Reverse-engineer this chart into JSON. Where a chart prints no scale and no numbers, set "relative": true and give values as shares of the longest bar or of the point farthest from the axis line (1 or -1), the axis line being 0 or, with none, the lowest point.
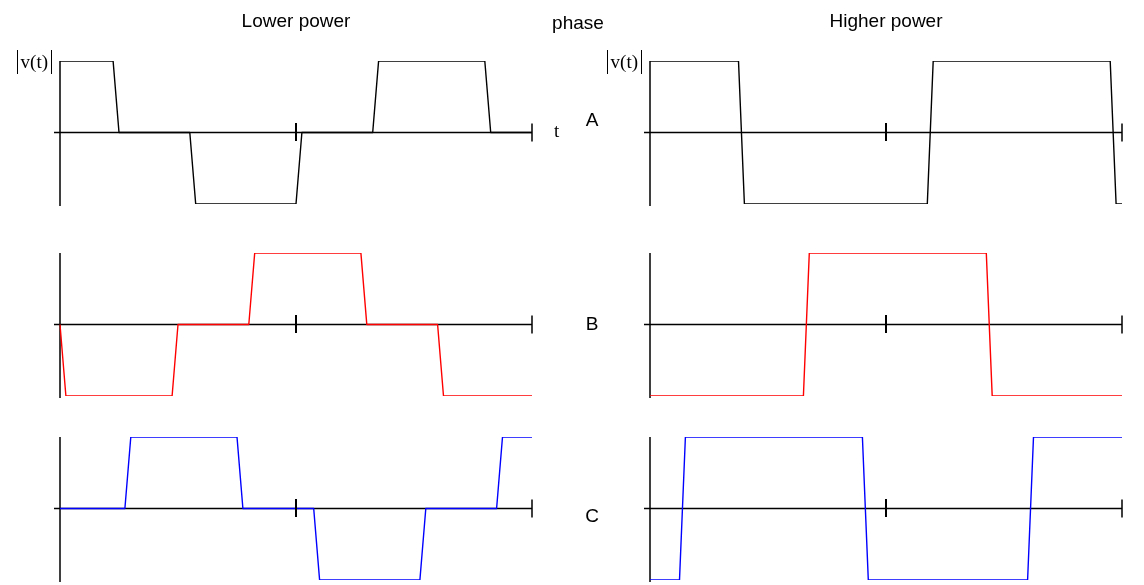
{
  "chart_data": [
    {
      "type": "line",
      "relative": true,
      "title": "Lower power",
      "ylabel": "v(t)",
      "xlabel": "t",
      "categories": [
        null,
        null,
        null,
        null,
        null,
        null,
        null,
        null,
        null,
        null,
        null,
        null,
        null,
        null,
        null,
        null,
        null,
        null,
        null,
        null,
        null,
        null,
        null,
        null,
        null,
        null,
        null,
        null,
        null,
        null,
        null,
        null,
        null,
        null,
        null,
        null,
        null,
        null,
        null,
        null,
        null,
        null,
        null,
        null,
        null,
        null,
        null,
        null,
        null,
        null,
        null,
        null,
        null,
        null,
        null,
        null,
        null,
        null,
        null,
        null,
        null,
        null,
        null,
        null,
        null,
        null,
        null,
        null,
        null,
        null,
        null,
        null,
        null,
        null,
        null,
        null,
        null,
        null,
        null,
        null,
        null
      ],
      "series": [
        {
          "color": "#000000",
          "values": [
            1,
            1,
            1,
            1,
            1,
            1,
            1,
            1,
            1,
            1,
            0,
            0,
            0,
            0,
            0,
            0,
            0,
            0,
            0,
            0,
            0,
            0,
            0,
            -1,
            -1,
            -1,
            -1,
            -1,
            -1,
            -1,
            -1,
            -1,
            -1,
            -1,
            -1,
            -1,
            -1,
            -1,
            -1,
            -1,
            -1,
            0,
            0,
            0,
            0,
            0,
            0,
            0,
            0,
            0,
            0,
            0,
            0,
            0,
            1,
            1,
            1,
            1,
            1,
            1,
            1,
            1,
            1,
            1,
            1,
            1,
            1,
            1,
            1,
            1,
            1,
            1,
            1,
            0,
            0,
            0,
            0,
            0,
            0,
            0,
            0
          ]
        }
      ]
    },
    {
      "type": "line",
      "relative": true,
      "categories": [
        null,
        null,
        null,
        null,
        null,
        null,
        null,
        null,
        null,
        null,
        null,
        null,
        null,
        null,
        null,
        null,
        null,
        null,
        null,
        null,
        null,
        null,
        null,
        null,
        null,
        null,
        null,
        null,
        null,
        null,
        null,
        null,
        null,
        null,
        null,
        null,
        null,
        null,
        null,
        null,
        null,
        null,
        null,
        null,
        null,
        null,
        null,
        null,
        null,
        null,
        null,
        null,
        null,
        null,
        null,
        null,
        null,
        null,
        null,
        null,
        null,
        null,
        null,
        null,
        null,
        null,
        null,
        null,
        null,
        null,
        null,
        null,
        null,
        null,
        null,
        null,
        null,
        null,
        null,
        null,
        null
      ],
      "series": [
        {
          "color": "#ff0000",
          "values": [
            0,
            -1,
            -1,
            -1,
            -1,
            -1,
            -1,
            -1,
            -1,
            -1,
            -1,
            -1,
            -1,
            -1,
            -1,
            -1,
            -1,
            -1,
            -1,
            -1,
            0,
            0,
            0,
            0,
            0,
            0,
            0,
            0,
            0,
            0,
            0,
            0,
            0,
            1,
            1,
            1,
            1,
            1,
            1,
            1,
            1,
            1,
            1,
            1,
            1,
            1,
            1,
            1,
            1,
            1,
            1,
            1,
            0,
            0,
            0,
            0,
            0,
            0,
            0,
            0,
            0,
            0,
            0,
            0,
            0,
            -1,
            -1,
            -1,
            -1,
            -1,
            -1,
            -1,
            -1,
            -1,
            -1,
            -1,
            -1,
            -1,
            -1,
            -1,
            -1
          ]
        }
      ]
    },
    {
      "type": "line",
      "relative": true,
      "categories": [
        null,
        null,
        null,
        null,
        null,
        null,
        null,
        null,
        null,
        null,
        null,
        null,
        null,
        null,
        null,
        null,
        null,
        null,
        null,
        null,
        null,
        null,
        null,
        null,
        null,
        null,
        null,
        null,
        null,
        null,
        null,
        null,
        null,
        null,
        null,
        null,
        null,
        null,
        null,
        null,
        null,
        null,
        null,
        null,
        null,
        null,
        null,
        null,
        null,
        null,
        null,
        null,
        null,
        null,
        null,
        null,
        null,
        null,
        null,
        null,
        null,
        null,
        null,
        null,
        null,
        null,
        null,
        null,
        null,
        null,
        null,
        null,
        null,
        null,
        null,
        null,
        null,
        null,
        null,
        null,
        null
      ],
      "series": [
        {
          "color": "#0000ff",
          "values": [
            0,
            0,
            0,
            0,
            0,
            0,
            0,
            0,
            0,
            0,
            0,
            0,
            1,
            1,
            1,
            1,
            1,
            1,
            1,
            1,
            1,
            1,
            1,
            1,
            1,
            1,
            1,
            1,
            1,
            1,
            1,
            0,
            0,
            0,
            0,
            0,
            0,
            0,
            0,
            0,
            0,
            0,
            0,
            0,
            -1,
            -1,
            -1,
            -1,
            -1,
            -1,
            -1,
            -1,
            -1,
            -1,
            -1,
            -1,
            -1,
            -1,
            -1,
            -1,
            -1,
            -1,
            0,
            0,
            0,
            0,
            0,
            0,
            0,
            0,
            0,
            0,
            0,
            0,
            0,
            1,
            1,
            1,
            1,
            1,
            1
          ]
        }
      ]
    },
    {
      "type": "other",
      "title": "phase",
      "annotations": [
        "A",
        "B",
        "C"
      ]
    },
    {
      "type": "line",
      "relative": true,
      "title": "Higher power",
      "ylabel": "v(t)",
      "categories": [
        null,
        null,
        null,
        null,
        null,
        null,
        null,
        null,
        null,
        null,
        null,
        null,
        null,
        null,
        null,
        null,
        null,
        null,
        null,
        null,
        null,
        null,
        null,
        null,
        null,
        null,
        null,
        null,
        null,
        null,
        null,
        null,
        null,
        null,
        null,
        null,
        null,
        null,
        null,
        null,
        null,
        null,
        null,
        null,
        null,
        null,
        null,
        null,
        null,
        null,
        null,
        null,
        null,
        null,
        null,
        null,
        null,
        null,
        null,
        null,
        null,
        null,
        null,
        null,
        null,
        null,
        null,
        null,
        null,
        null,
        null,
        null,
        null,
        null,
        null,
        null,
        null,
        null,
        null,
        null,
        null
      ],
      "series": [
        {
          "color": "#000000",
          "values": [
            1,
            1,
            1,
            1,
            1,
            1,
            1,
            1,
            1,
            1,
            1,
            1,
            1,
            1,
            1,
            1,
            -1,
            -1,
            -1,
            -1,
            -1,
            -1,
            -1,
            -1,
            -1,
            -1,
            -1,
            -1,
            -1,
            -1,
            -1,
            -1,
            -1,
            -1,
            -1,
            -1,
            -1,
            -1,
            -1,
            -1,
            -1,
            -1,
            -1,
            -1,
            -1,
            -1,
            -1,
            -1,
            1,
            1,
            1,
            1,
            1,
            1,
            1,
            1,
            1,
            1,
            1,
            1,
            1,
            1,
            1,
            1,
            1,
            1,
            1,
            1,
            1,
            1,
            1,
            1,
            1,
            1,
            1,
            1,
            1,
            1,
            1,
            -1,
            -1
          ]
        }
      ]
    },
    {
      "type": "line",
      "relative": true,
      "categories": [
        null,
        null,
        null,
        null,
        null,
        null,
        null,
        null,
        null,
        null,
        null,
        null,
        null,
        null,
        null,
        null,
        null,
        null,
        null,
        null,
        null,
        null,
        null,
        null,
        null,
        null,
        null,
        null,
        null,
        null,
        null,
        null,
        null,
        null,
        null,
        null,
        null,
        null,
        null,
        null,
        null,
        null,
        null,
        null,
        null,
        null,
        null,
        null,
        null,
        null,
        null,
        null,
        null,
        null,
        null,
        null,
        null,
        null,
        null,
        null,
        null,
        null,
        null,
        null,
        null,
        null,
        null,
        null,
        null,
        null,
        null,
        null,
        null,
        null,
        null,
        null,
        null,
        null,
        null,
        null,
        null
      ],
      "series": [
        {
          "color": "#ff0000",
          "values": [
            -1,
            -1,
            -1,
            -1,
            -1,
            -1,
            -1,
            -1,
            -1,
            -1,
            -1,
            -1,
            -1,
            -1,
            -1,
            -1,
            -1,
            -1,
            -1,
            -1,
            -1,
            -1,
            -1,
            -1,
            -1,
            -1,
            -1,
            1,
            1,
            1,
            1,
            1,
            1,
            1,
            1,
            1,
            1,
            1,
            1,
            1,
            1,
            1,
            1,
            1,
            1,
            1,
            1,
            1,
            1,
            1,
            1,
            1,
            1,
            1,
            1,
            1,
            1,
            1,
            -1,
            -1,
            -1,
            -1,
            -1,
            -1,
            -1,
            -1,
            -1,
            -1,
            -1,
            -1,
            -1,
            -1,
            -1,
            -1,
            -1,
            -1,
            -1,
            -1,
            -1,
            -1,
            -1
          ]
        }
      ]
    },
    {
      "type": "line",
      "relative": true,
      "categories": [
        null,
        null,
        null,
        null,
        null,
        null,
        null,
        null,
        null,
        null,
        null,
        null,
        null,
        null,
        null,
        null,
        null,
        null,
        null,
        null,
        null,
        null,
        null,
        null,
        null,
        null,
        null,
        null,
        null,
        null,
        null,
        null,
        null,
        null,
        null,
        null,
        null,
        null,
        null,
        null,
        null,
        null,
        null,
        null,
        null,
        null,
        null,
        null,
        null,
        null,
        null,
        null,
        null,
        null,
        null,
        null,
        null,
        null,
        null,
        null,
        null,
        null,
        null,
        null,
        null,
        null,
        null,
        null,
        null,
        null,
        null,
        null,
        null,
        null,
        null,
        null,
        null,
        null,
        null,
        null,
        null
      ],
      "series": [
        {
          "color": "#0000ff",
          "values": [
            -1,
            -1,
            -1,
            -1,
            -1,
            -1,
            1,
            1,
            1,
            1,
            1,
            1,
            1,
            1,
            1,
            1,
            1,
            1,
            1,
            1,
            1,
            1,
            1,
            1,
            1,
            1,
            1,
            1,
            1,
            1,
            1,
            1,
            1,
            1,
            1,
            1,
            1,
            -1,
            -1,
            -1,
            -1,
            -1,
            -1,
            -1,
            -1,
            -1,
            -1,
            -1,
            -1,
            -1,
            -1,
            -1,
            -1,
            -1,
            -1,
            -1,
            -1,
            -1,
            -1,
            -1,
            -1,
            -1,
            -1,
            -1,
            -1,
            1,
            1,
            1,
            1,
            1,
            1,
            1,
            1,
            1,
            1,
            1,
            1,
            1,
            1,
            1,
            1
          ]
        }
      ]
    }
  ]
}
